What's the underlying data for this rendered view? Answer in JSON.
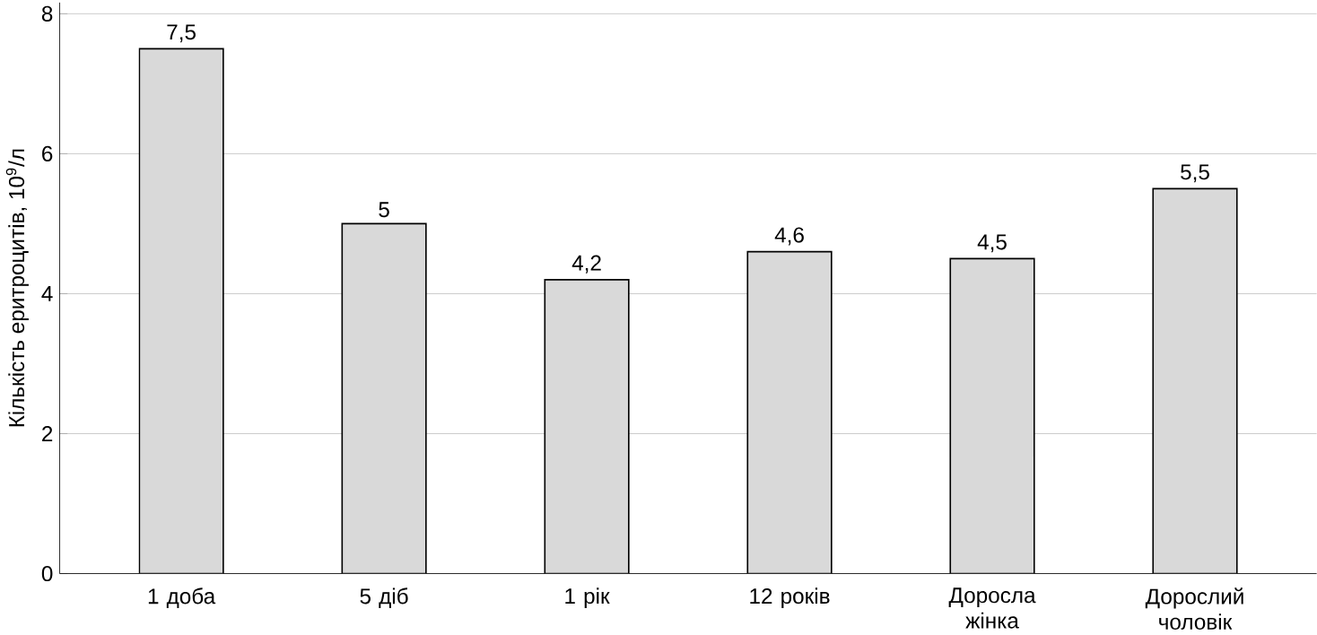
{
  "chart_data": {
    "type": "bar",
    "ylabel": "Кількість еритроцитів, 10$^{9}$/л",
    "categories": [
      "1 доба",
      "5 діб",
      "1 рік",
      "12 років",
      "Доросла жінка",
      "Дорослий чоловік"
    ],
    "values": [
      7.5,
      5,
      4.2,
      4.6,
      4.5,
      5.5
    ],
    "value_labels": [
      "7,5",
      "5",
      "4,2",
      "4,6",
      "4,5",
      "5,5"
    ],
    "color": "#d9d9d9",
    "ylim": [
      0,
      8
    ],
    "yticks": [
      0,
      2,
      4,
      6,
      8
    ],
    "grid": "y"
  }
}
